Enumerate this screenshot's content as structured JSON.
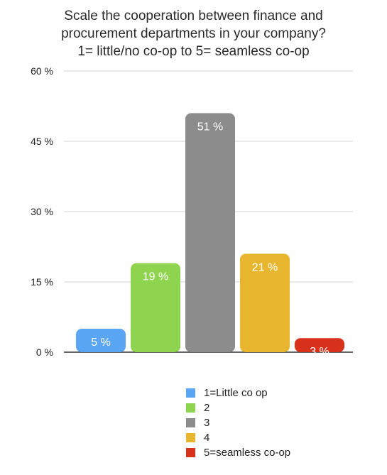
{
  "title_lines": [
    "Scale the cooperation between finance and",
    "procurement departments in  your company?",
    "1= little/no co-op to 5= seamless co-op"
  ],
  "chart_data": {
    "type": "bar",
    "title": "Scale the cooperation between finance and procurement departments in  your company? 1= little/no co-op to 5= seamless co-op",
    "categories": [
      "1=Little co op",
      "2",
      "3",
      "4",
      "5=seamless co-op"
    ],
    "values": [
      5,
      19,
      51,
      21,
      3
    ],
    "value_labels": [
      "5 %",
      "19 %",
      "51 %",
      "21 %",
      "3 %"
    ],
    "colors": [
      "#5aa6f5",
      "#8ed44e",
      "#8c8c8c",
      "#e8b62e",
      "#d9321c"
    ],
    "ylim": [
      0,
      60
    ],
    "yticks": [
      0,
      15,
      30,
      45,
      60
    ],
    "ytick_labels": [
      "0 %",
      "15 %",
      "30 %",
      "45 %",
      "60 %"
    ],
    "grid": true,
    "legend": "bottom",
    "xlabel": "",
    "ylabel": ""
  }
}
